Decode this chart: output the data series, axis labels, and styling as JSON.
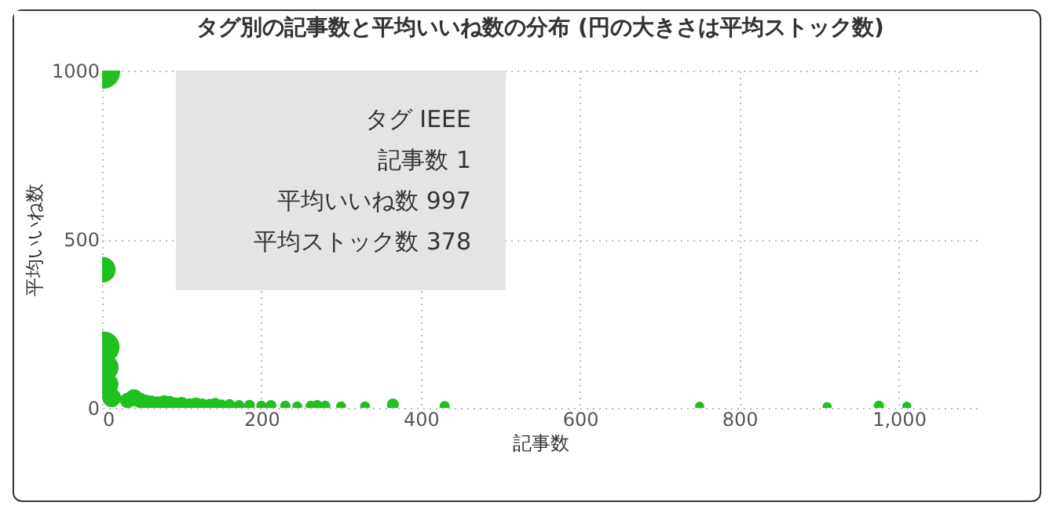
{
  "chart_data": {
    "type": "bubble",
    "title": "タグ別の記事数と平均いいね数の分布 (円の大きさは平均ストック数)",
    "xlabel": "記事数",
    "ylabel": "平均いいね数",
    "x": [
      1,
      1,
      2,
      4,
      6,
      12,
      32,
      40,
      48,
      55,
      62,
      70,
      78,
      85,
      92,
      100,
      110,
      118,
      126,
      135,
      142,
      150,
      160,
      172,
      185,
      200,
      212,
      230,
      245,
      262,
      270,
      280,
      300,
      330,
      365,
      430,
      750,
      910,
      975,
      1010
    ],
    "series": [
      {
        "color": "#1fc11f",
        "values": [
          997,
          410,
          180,
          120,
          70,
          30,
          22,
          30,
          22,
          18,
          15,
          14,
          16,
          15,
          12,
          13,
          10,
          12,
          10,
          9,
          11,
          8,
          9,
          7,
          8,
          6,
          7,
          6,
          5,
          6,
          7,
          6,
          5,
          5,
          10,
          5,
          5,
          4,
          6,
          5
        ],
        "sizes": [
          1,
          0.55,
          0.85,
          0.6,
          0.45,
          0.3,
          0.2,
          0.25,
          0.2,
          0.18,
          0.18,
          0.16,
          0.18,
          0.16,
          0.14,
          0.15,
          0.13,
          0.14,
          0.12,
          0.12,
          0.13,
          0.11,
          0.11,
          0.1,
          0.1,
          0.09,
          0.1,
          0.09,
          0.08,
          0.09,
          0.1,
          0.09,
          0.08,
          0.08,
          0.12,
          0.09,
          0.07,
          0.07,
          0.09,
          0.07
        ]
      }
    ],
    "xlim": [
      0,
      1100
    ],
    "xticks": [
      0,
      200,
      400,
      600,
      800,
      {
        "value": 1000,
        "label": "1,000"
      }
    ],
    "ylim": [
      0,
      1000
    ],
    "yticks": [
      0,
      500,
      1000
    ],
    "grid": true,
    "annotations": [
      "タグ IEEE",
      "記事数 1",
      "平均いいね数 997",
      "平均ストック数 378"
    ]
  }
}
